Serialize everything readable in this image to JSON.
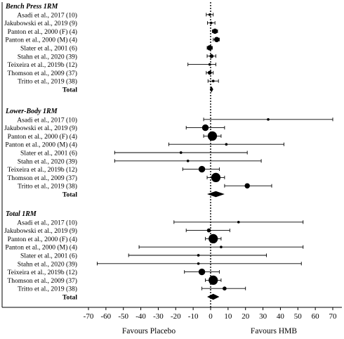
{
  "chart_data": {
    "type": "forest",
    "xlim": [
      -70,
      70
    ],
    "xticks": [
      -70,
      -60,
      -50,
      -40,
      -30,
      -20,
      -10,
      0,
      10,
      20,
      30,
      40,
      50,
      60,
      70
    ],
    "x_left_label": "Favours Placebo",
    "x_right_label": "Favours HMB",
    "reference_line": 0,
    "groups": [
      {
        "title": "Bench Press 1RM",
        "total_label": "Total",
        "total": {
          "est": 0.5,
          "lo": -0.5,
          "hi": 1.5
        },
        "studies": [
          {
            "label": "Asadi et al., 2017 (10)",
            "est": -0.5,
            "lo": -2.5,
            "hi": 1.5,
            "w": 1
          },
          {
            "label": "Jakubowski et al., 2019 (9)",
            "est": 0.3,
            "lo": -1.8,
            "hi": 2.5,
            "w": 1
          },
          {
            "label": "Panton et al., 2000 (F) (4)",
            "est": 2.5,
            "lo": 1.0,
            "hi": 4.0,
            "w": 3
          },
          {
            "label": "Panton et al., 2000 (M) (4)",
            "est": 3.5,
            "lo": 1.5,
            "hi": 5.0,
            "w": 3
          },
          {
            "label": "Slater et al., 2001 (6)",
            "est": -0.5,
            "lo": -2.0,
            "hi": 1.0,
            "w": 3
          },
          {
            "label": "Stahn et al., 2020 (39)",
            "est": 0.5,
            "lo": -2.0,
            "hi": 3.0,
            "w": 2
          },
          {
            "label": "Teixeira et al., 2019b (12)",
            "est": -0.5,
            "lo": -13.0,
            "hi": 3.0,
            "w": 1
          },
          {
            "label": "Thomson et al., 2009 (37)",
            "est": -0.5,
            "lo": -2.5,
            "hi": 1.5,
            "w": 2
          },
          {
            "label": "Tritto et al., 2019 (38)",
            "est": 1.5,
            "lo": -1.5,
            "hi": 4.5,
            "w": 1
          }
        ]
      },
      {
        "title": "Lower-Body 1RM",
        "total_label": "Total",
        "total": {
          "est": 3.0,
          "lo": -2.0,
          "hi": 8.0
        },
        "studies": [
          {
            "label": "Asadi et al., 2017 (10)",
            "est": 33.0,
            "lo": -4.0,
            "hi": 70.0,
            "w": 1
          },
          {
            "label": "Jakubowski et al., 2019 (9)",
            "est": -3.0,
            "lo": -14.0,
            "hi": 8.0,
            "w": 4
          },
          {
            "label": "Panton et al., 2000 (F) (4)",
            "est": 1.0,
            "lo": -4.0,
            "hi": 6.0,
            "w": 6
          },
          {
            "label": "Panton et al., 2000 (M) (4)",
            "est": 9.0,
            "lo": -24.0,
            "hi": 42.0,
            "w": 1
          },
          {
            "label": "Slater et al., 2001 (6)",
            "est": -17.0,
            "lo": -55.0,
            "hi": 21.0,
            "w": 1
          },
          {
            "label": "Stahn et al., 2020 (39)",
            "est": -13.0,
            "lo": -55.0,
            "hi": 29.0,
            "w": 1
          },
          {
            "label": "Teixeira et al., 2019b (12)",
            "est": -5.0,
            "lo": -16.0,
            "hi": 5.0,
            "w": 4
          },
          {
            "label": "Thomson et al., 2009 (37)",
            "est": 3.0,
            "lo": -2.0,
            "hi": 8.0,
            "w": 6
          },
          {
            "label": "Tritto et al., 2019 (38)",
            "est": 21.0,
            "lo": 8.0,
            "hi": 35.0,
            "w": 3
          }
        ]
      },
      {
        "title": "Total 1RM",
        "total_label": "Total",
        "total": {
          "est": 1.5,
          "lo": -2.0,
          "hi": 5.0
        },
        "studies": [
          {
            "label": "Asadi et al., 2017 (10)",
            "est": 16.0,
            "lo": -21.0,
            "hi": 53.0,
            "w": 1
          },
          {
            "label": "Jakubowski et al., 2019 (9)",
            "est": -1.0,
            "lo": -14.0,
            "hi": 11.0,
            "w": 2
          },
          {
            "label": "Panton et al., 2000 (F) (4)",
            "est": 1.5,
            "lo": -3.0,
            "hi": 6.0,
            "w": 6
          },
          {
            "label": "Panton et al., 2000 (M) (4)",
            "est": 6.0,
            "lo": -41.0,
            "hi": 53.0,
            "w": 1
          },
          {
            "label": "Slater et al., 2001 (6)",
            "est": -7.0,
            "lo": -47.0,
            "hi": 32.0,
            "w": 1
          },
          {
            "label": "Stahn et al., 2020 (39)",
            "est": -7.0,
            "lo": -65.0,
            "hi": 52.0,
            "w": 1
          },
          {
            "label": "Teixeira et al., 2019b (12)",
            "est": -5.0,
            "lo": -15.0,
            "hi": 5.0,
            "w": 4
          },
          {
            "label": "Thomson et al., 2009 (37)",
            "est": 1.5,
            "lo": -3.0,
            "hi": 6.0,
            "w": 6
          },
          {
            "label": "Tritto et al., 2019 (38)",
            "est": 8.0,
            "lo": -5.0,
            "hi": 20.0,
            "w": 2
          }
        ]
      }
    ]
  }
}
